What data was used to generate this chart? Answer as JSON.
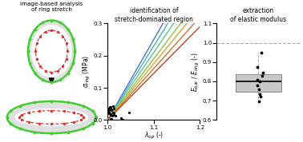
{
  "title1": "image-based analysis\nof ring stretch",
  "title2": "identification of\nstretch-dominated region",
  "title3": "extraction\nof elastic modulus",
  "xlim2": [
    1.0,
    1.2
  ],
  "ylim2": [
    0,
    0.3
  ],
  "ylim3": [
    0.6,
    1.1
  ],
  "line_colors": [
    "#4477cc",
    "#55aacc",
    "#55cc88",
    "#99bb44",
    "#ccaa33",
    "#cc7733",
    "#bb4422"
  ],
  "line_slopes": [
    2.5,
    2.3,
    2.1,
    1.9,
    1.75,
    1.6,
    1.45
  ],
  "box_data": [
    0.695,
    0.72,
    0.735,
    0.76,
    0.78,
    0.8,
    0.81,
    0.83,
    0.845,
    0.875,
    0.95
  ],
  "ref_line": 1.0,
  "background": "#ffffff",
  "ring_gray": "#e0e0e0",
  "ring_outer_color": "#44cc33",
  "ring_inner_color": "#dd3333",
  "whisker_color": "#aaaaaa",
  "box_face": "#c8c8c8",
  "box_edge": "#888888"
}
